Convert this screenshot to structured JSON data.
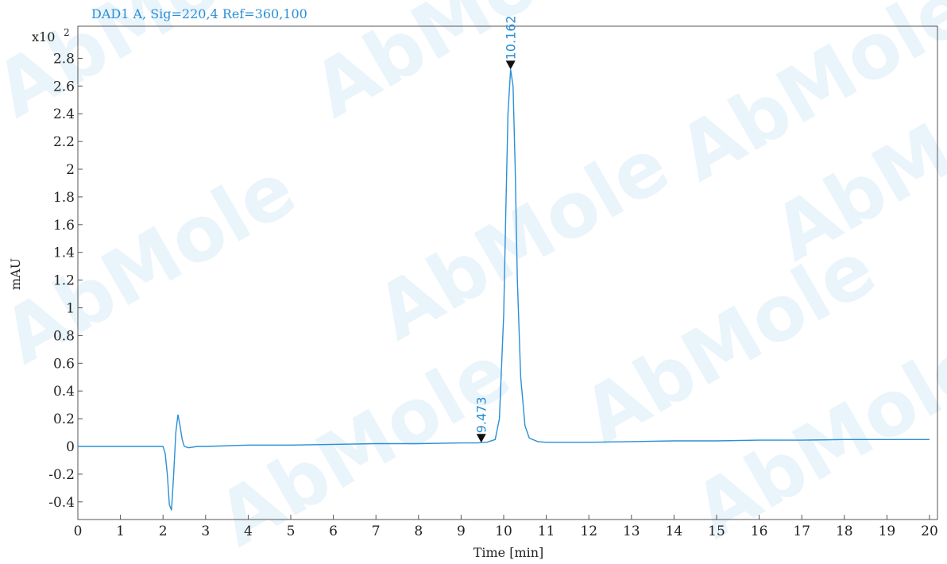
{
  "chart_data": {
    "type": "line",
    "title": "DAD1 A, Sig=220,4 Ref=360,100",
    "xlabel": "Time [min]",
    "ylabel": "mAU",
    "y_multiplier": "x10",
    "y_multiplier_exp": "2",
    "xlim": [
      0,
      20
    ],
    "ylim": [
      -0.5,
      3.0
    ],
    "x_ticks": [
      0,
      1,
      2,
      3,
      4,
      5,
      6,
      7,
      8,
      9,
      10,
      11,
      12,
      13,
      14,
      15,
      16,
      17,
      18,
      19,
      20
    ],
    "y_ticks": [
      -0.4,
      -0.2,
      0,
      0.2,
      0.4,
      0.6,
      0.8,
      1,
      1.2,
      1.4,
      1.6,
      1.8,
      2,
      2.2,
      2.4,
      2.6,
      2.8
    ],
    "y_tick_labels": [
      "-0.4",
      "-0.2",
      "0",
      "0.2",
      "0.4",
      "0.6",
      "0.8",
      "1",
      "1.2",
      "1.4",
      "1.6",
      "1.8",
      "2",
      "2.2",
      "2.4",
      "2.6",
      "2.8"
    ],
    "grid": false,
    "line_color": "#2a8fd6",
    "series": [
      {
        "x": [
          0,
          1,
          1.5,
          2.0,
          2.05,
          2.1,
          2.15,
          2.2,
          2.25,
          2.3,
          2.35,
          2.4,
          2.45,
          2.5,
          2.6,
          2.8,
          3,
          4,
          5,
          6,
          7,
          8,
          9,
          9.4,
          9.473,
          9.6,
          9.8,
          9.9,
          10.0,
          10.05,
          10.1,
          10.162,
          10.22,
          10.27,
          10.32,
          10.4,
          10.5,
          10.6,
          10.8,
          11,
          12,
          13,
          14,
          15,
          16,
          17,
          18,
          19,
          20
        ],
        "y": [
          0,
          0,
          0,
          0.0,
          -0.05,
          -0.2,
          -0.42,
          -0.46,
          -0.2,
          0.1,
          0.23,
          0.15,
          0.05,
          0.0,
          -0.01,
          0.0,
          0.0,
          0.01,
          0.01,
          0.015,
          0.02,
          0.02,
          0.025,
          0.025,
          0.028,
          0.03,
          0.05,
          0.2,
          0.95,
          1.7,
          2.4,
          2.72,
          2.6,
          2.0,
          1.2,
          0.5,
          0.15,
          0.06,
          0.035,
          0.03,
          0.03,
          0.035,
          0.04,
          0.04,
          0.045,
          0.045,
          0.05,
          0.05,
          0.05
        ]
      }
    ],
    "peaks": [
      {
        "time": 9.473,
        "label": "9.473",
        "y": 0.027
      },
      {
        "time": 10.162,
        "label": "10.162",
        "y": 2.72
      }
    ],
    "watermark_text": "AbMole"
  }
}
